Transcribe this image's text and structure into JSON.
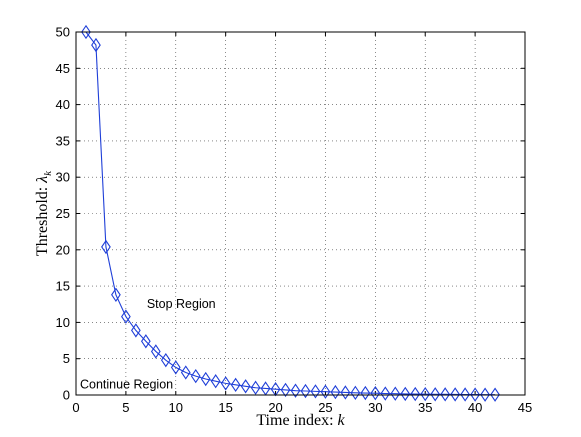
{
  "chart_data": {
    "type": "line",
    "xlabel": "Time index: ",
    "xlabel_var": "k",
    "ylabel": "Threshold: ",
    "ylabel_var": "λ",
    "ylabel_sub": "k",
    "xlim": [
      0,
      45
    ],
    "ylim": [
      0,
      50
    ],
    "xticks": [
      0,
      5,
      10,
      15,
      20,
      25,
      30,
      35,
      40,
      45
    ],
    "yticks": [
      0,
      5,
      10,
      15,
      20,
      25,
      30,
      35,
      40,
      45,
      50
    ],
    "grid": true,
    "marker": "diamond",
    "color": "#1f3fd8",
    "annotations": [
      {
        "text": "Stop Region",
        "x": 7.1,
        "y": 12.0
      },
      {
        "text": "Continue Region",
        "x": 0.4,
        "y": 0.9
      }
    ],
    "series": [
      {
        "x": [
          1,
          2,
          3,
          4,
          5,
          6,
          7,
          8,
          9,
          10,
          11,
          12,
          13,
          14,
          15,
          16,
          17,
          18,
          19,
          20,
          21,
          22,
          23,
          24,
          25,
          26,
          27,
          28,
          29,
          30,
          31,
          32,
          33,
          34,
          35,
          36,
          37,
          38,
          39,
          40,
          41,
          42
        ],
        "y": [
          50,
          48.2,
          20.4,
          13.8,
          10.8,
          8.9,
          7.4,
          6.0,
          4.8,
          3.8,
          3.1,
          2.6,
          2.2,
          1.9,
          1.6,
          1.4,
          1.2,
          1.0,
          0.9,
          0.8,
          0.7,
          0.6,
          0.55,
          0.5,
          0.45,
          0.4,
          0.35,
          0.3,
          0.27,
          0.25,
          0.2,
          0.18,
          0.15,
          0.13,
          0.12,
          0.1,
          0.09,
          0.08,
          0.07,
          0.06,
          0.05,
          0.05
        ]
      }
    ]
  }
}
